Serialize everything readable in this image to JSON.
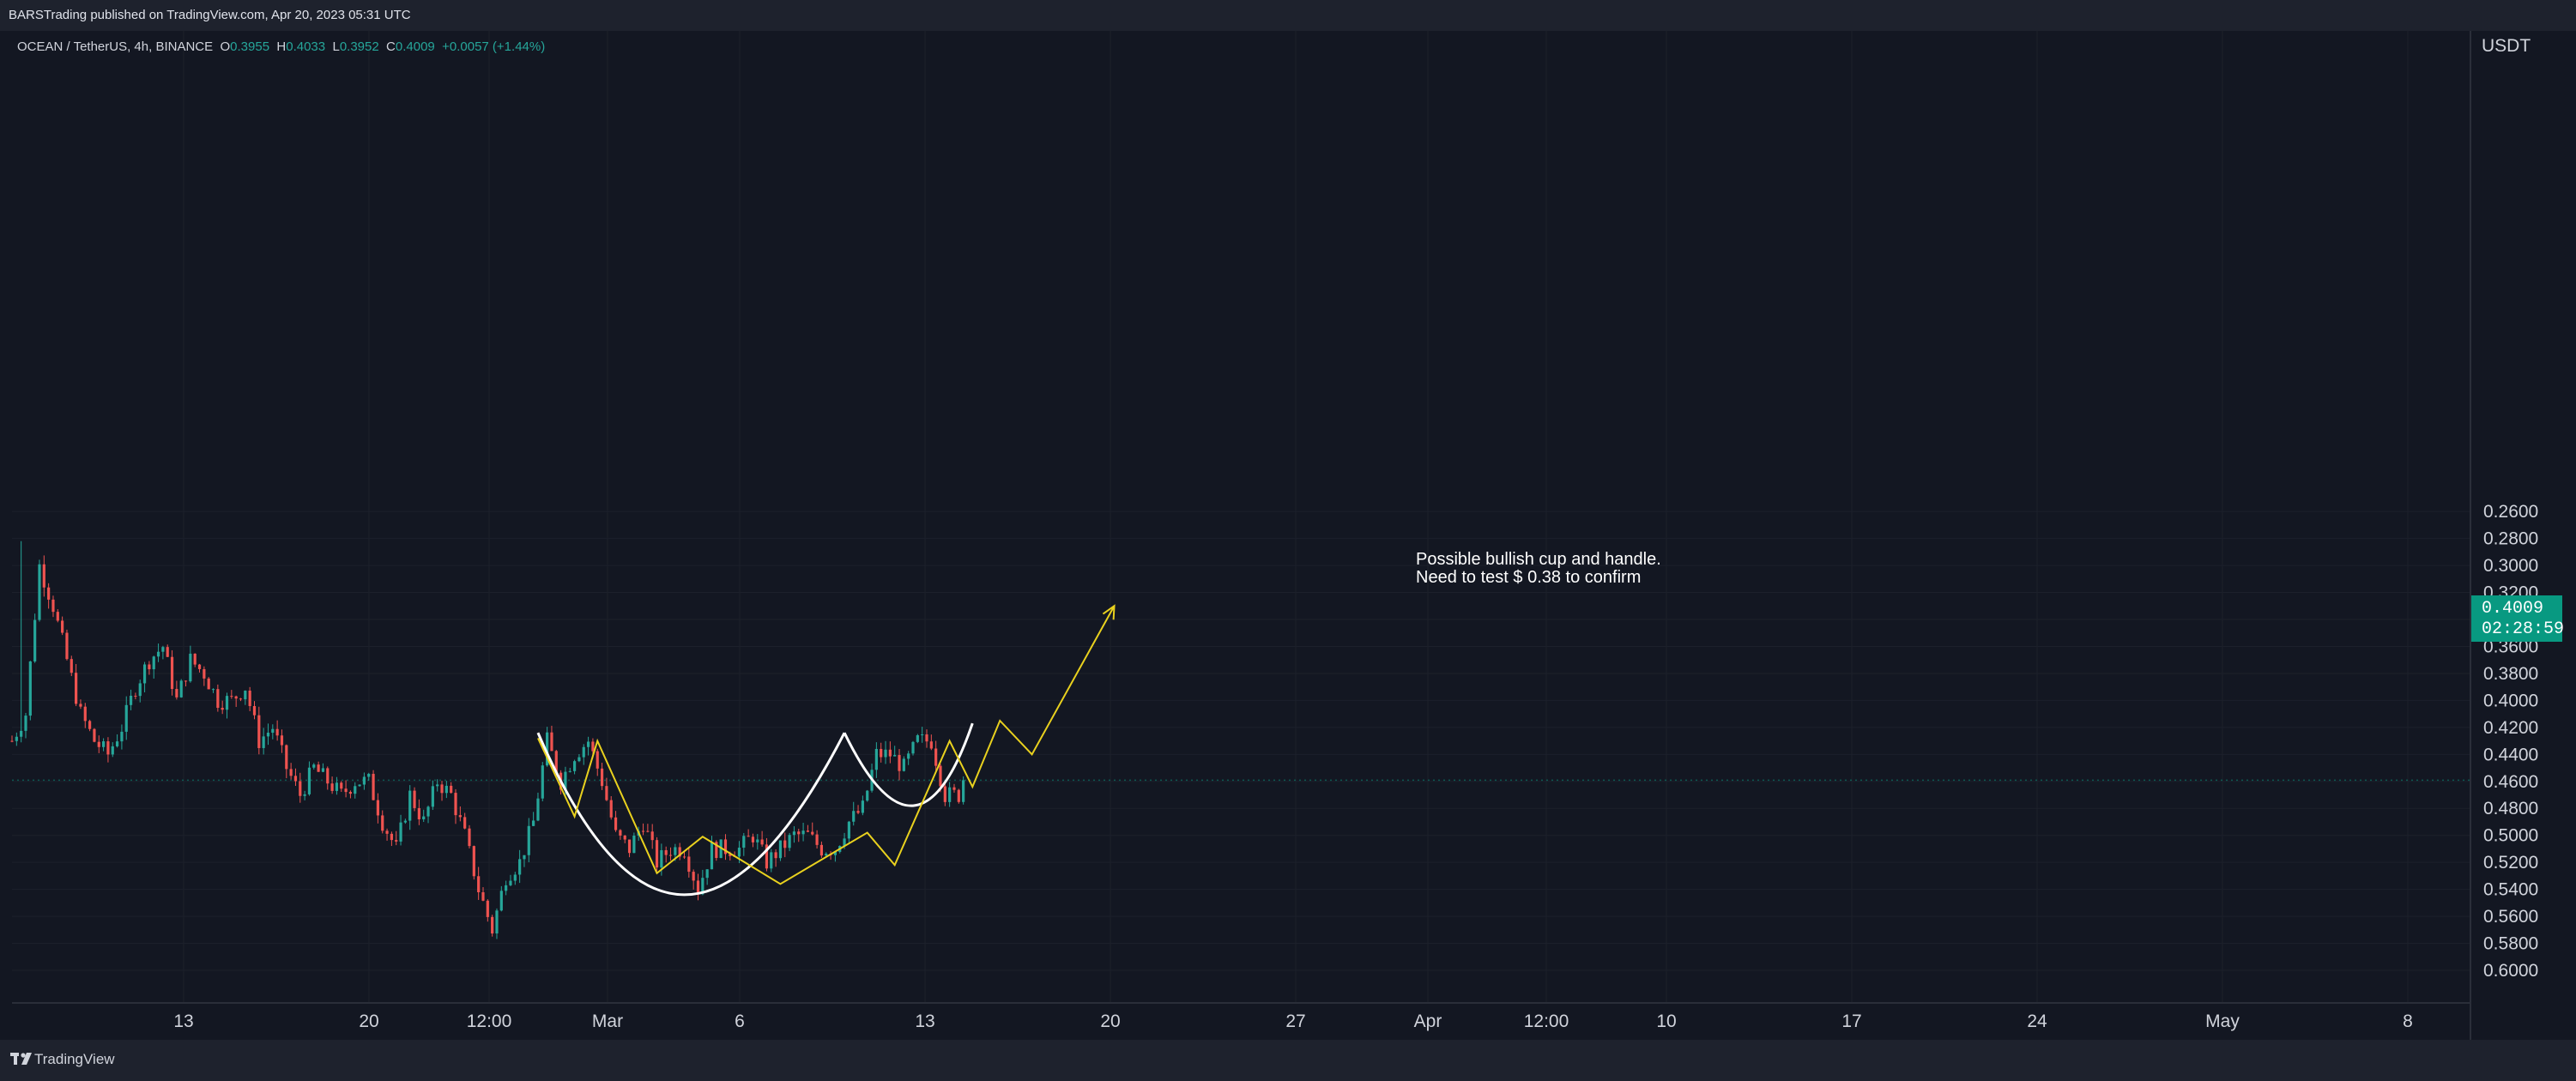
{
  "header": {
    "published": "BARSTrading published on TradingView.com, Apr 20, 2023 05:31 UTC"
  },
  "legend": {
    "symbol": "OCEAN / TetherUS, 4h, BINANCE",
    "open_label": "O",
    "open": "0.3955",
    "high_label": "H",
    "high": "0.4033",
    "low_label": "L",
    "low": "0.3952",
    "close_label": "C",
    "close": "0.4009",
    "change": "+0.0057 (+1.44%)"
  },
  "price_axis": {
    "currency": "USDT",
    "labels": [
      "0.6000",
      "0.5800",
      "0.5600",
      "0.5400",
      "0.5200",
      "0.5000",
      "0.4800",
      "0.4600",
      "0.4400",
      "0.4200",
      "0.4000",
      "0.3800",
      "0.3600",
      "0.3400",
      "0.3200",
      "0.3000",
      "0.2800",
      "0.2600"
    ]
  },
  "last_price": {
    "value": "0.4009",
    "countdown": "02:28:59"
  },
  "footer": {
    "brand": "TradingView"
  },
  "colors": {
    "up": "#26a69a",
    "down": "#ef5350",
    "background": "#131722",
    "drawing_yellow": "#e9d11e",
    "drawing_white": "#ffffff",
    "price_tag": "#089981"
  },
  "chart_data": {
    "type": "candlestick",
    "symbol": "OCEAN / TetherUS",
    "interval": "4h",
    "exchange": "BINANCE",
    "x_ticks": [
      "13",
      "20",
      "12:00",
      "Mar",
      "6",
      "13",
      "20",
      "27",
      "Apr",
      "12:00",
      "10",
      "17",
      "24",
      "May",
      "8"
    ],
    "ylim": [
      0.25,
      0.6
    ],
    "y_ticks": [
      0.26,
      0.28,
      0.3,
      0.32,
      0.34,
      0.36,
      0.38,
      0.4,
      0.42,
      0.44,
      0.46,
      0.48,
      0.5,
      0.52,
      0.54,
      0.56,
      0.58,
      0.6
    ],
    "close_path": [
      [
        0,
        0.43
      ],
      [
        3,
        0.45
      ],
      [
        6,
        0.56
      ],
      [
        9,
        0.53
      ],
      [
        12,
        0.49
      ],
      [
        15,
        0.45
      ],
      [
        18,
        0.43
      ],
      [
        21,
        0.42
      ],
      [
        24,
        0.44
      ],
      [
        27,
        0.47
      ],
      [
        30,
        0.49
      ],
      [
        33,
        0.5
      ],
      [
        36,
        0.46
      ],
      [
        39,
        0.49
      ],
      [
        42,
        0.48
      ],
      [
        45,
        0.46
      ],
      [
        48,
        0.46
      ],
      [
        51,
        0.47
      ],
      [
        54,
        0.43
      ],
      [
        57,
        0.44
      ],
      [
        60,
        0.41
      ],
      [
        63,
        0.39
      ],
      [
        66,
        0.41
      ],
      [
        69,
        0.4
      ],
      [
        72,
        0.39
      ],
      [
        75,
        0.4
      ],
      [
        78,
        0.4
      ],
      [
        81,
        0.37
      ],
      [
        84,
        0.35
      ],
      [
        87,
        0.39
      ],
      [
        90,
        0.37
      ],
      [
        93,
        0.4
      ],
      [
        96,
        0.39
      ],
      [
        99,
        0.36
      ],
      [
        102,
        0.32
      ],
      [
        105,
        0.29
      ],
      [
        108,
        0.33
      ],
      [
        111,
        0.34
      ],
      [
        114,
        0.37
      ],
      [
        117,
        0.43
      ],
      [
        120,
        0.4
      ],
      [
        123,
        0.42
      ],
      [
        126,
        0.43
      ],
      [
        129,
        0.4
      ],
      [
        132,
        0.36
      ],
      [
        135,
        0.35
      ],
      [
        138,
        0.37
      ],
      [
        141,
        0.34
      ],
      [
        144,
        0.35
      ],
      [
        147,
        0.35
      ],
      [
        150,
        0.32
      ],
      [
        153,
        0.35
      ],
      [
        156,
        0.35
      ],
      [
        159,
        0.35
      ],
      [
        162,
        0.36
      ],
      [
        165,
        0.34
      ],
      [
        168,
        0.35
      ],
      [
        171,
        0.36
      ],
      [
        174,
        0.36
      ],
      [
        177,
        0.35
      ],
      [
        180,
        0.35
      ],
      [
        183,
        0.37
      ],
      [
        186,
        0.38
      ],
      [
        189,
        0.42
      ],
      [
        192,
        0.42
      ],
      [
        195,
        0.41
      ],
      [
        198,
        0.43
      ],
      [
        201,
        0.43
      ],
      [
        204,
        0.39
      ],
      [
        207,
        0.39
      ],
      [
        208,
        0.401
      ]
    ],
    "wick_extremes": {
      "high": 0.578,
      "low": 0.285
    },
    "annotations": [
      {
        "type": "text",
        "lines": [
          "Possible bullish cup and handle.",
          "Need to test $ 0.38 to confirm"
        ]
      },
      {
        "type": "arc",
        "name": "cup",
        "color": "white",
        "pts": [
          [
            115,
            0.436
          ],
          [
            147,
            0.316
          ],
          [
            182,
            0.436
          ]
        ]
      },
      {
        "type": "arc",
        "name": "handle",
        "color": "white",
        "pts": [
          [
            182,
            0.436
          ],
          [
            197,
            0.382
          ],
          [
            210,
            0.443
          ]
        ]
      },
      {
        "type": "polyline",
        "name": "projection",
        "color": "yellow",
        "pts": [
          [
            115,
            0.432
          ],
          [
            123,
            0.374
          ],
          [
            128,
            0.43
          ],
          [
            141,
            0.332
          ],
          [
            151,
            0.359
          ],
          [
            168,
            0.324
          ],
          [
            187,
            0.362
          ],
          [
            193,
            0.338
          ],
          [
            205,
            0.43
          ],
          [
            210,
            0.396
          ],
          [
            216,
            0.445
          ],
          [
            223,
            0.42
          ],
          [
            241,
            0.53
          ]
        ]
      }
    ]
  }
}
